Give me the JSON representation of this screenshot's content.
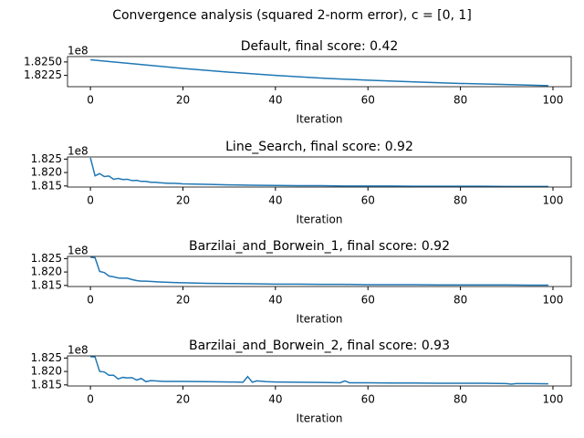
{
  "title": "Convergence analysis (squared 2-norm error), c = [0, 1]",
  "chart_data": [
    {
      "type": "line",
      "title": "Default, final score: 0.42",
      "xlabel": "Iteration",
      "offset_label": "1e8",
      "xlim": [
        -4.95,
        103.95
      ],
      "xticks": [
        0,
        20,
        40,
        60,
        80,
        100
      ],
      "ylim": [
        1.8204,
        1.826
      ],
      "yticks": [
        {
          "value": 1.8225,
          "label": "1.8225"
        },
        {
          "value": 1.825,
          "label": "1.8250"
        }
      ],
      "series": [
        {
          "color": "#1f77b4",
          "x": [
            0,
            10,
            20,
            30,
            40,
            50,
            60,
            70,
            80,
            90,
            99
          ],
          "values": [
            1.8254,
            1.8246,
            1.8238,
            1.8231,
            1.8225,
            1.822,
            1.8216,
            1.8213,
            1.821,
            1.8208,
            1.8206
          ]
        }
      ]
    },
    {
      "type": "line",
      "title": "Line_Search, final score: 0.92",
      "xlabel": "Iteration",
      "offset_label": "1e8",
      "xlim": [
        -4.95,
        103.95
      ],
      "xticks": [
        0,
        20,
        40,
        60,
        80,
        100
      ],
      "ylim": [
        1.8146,
        1.8258
      ],
      "yticks": [
        1.815,
        {
          "value": 1.82,
          "label": "1.820"
        },
        1.825
      ],
      "series": [
        {
          "color": "#1f77b4",
          "x": [
            0,
            1,
            2,
            3,
            4,
            5,
            6,
            7,
            8,
            9,
            10,
            11,
            12,
            13,
            14,
            15,
            16,
            17,
            18,
            19,
            20,
            25,
            30,
            35,
            40,
            45,
            50,
            55,
            60,
            65,
            70,
            75,
            80,
            85,
            90,
            95,
            99
          ],
          "values": [
            1.8255,
            1.8188,
            1.8196,
            1.8185,
            1.8187,
            1.8175,
            1.8178,
            1.8174,
            1.8175,
            1.817,
            1.8171,
            1.8167,
            1.8167,
            1.8164,
            1.8164,
            1.8162,
            1.8161,
            1.816,
            1.816,
            1.8159,
            1.8158,
            1.8156,
            1.8154,
            1.8153,
            1.8152,
            1.8151,
            1.8151,
            1.815,
            1.815,
            1.815,
            1.8149,
            1.8149,
            1.8149,
            1.8149,
            1.8148,
            1.8148,
            1.8148
          ]
        }
      ]
    },
    {
      "type": "line",
      "title": "Barzilai_and_Borwein_1, final score: 0.92",
      "xlabel": "Iteration",
      "offset_label": "1e8",
      "xlim": [
        -4.95,
        103.95
      ],
      "xticks": [
        0,
        20,
        40,
        60,
        80,
        100
      ],
      "ylim": [
        1.8146,
        1.8258
      ],
      "yticks": [
        1.815,
        {
          "value": 1.82,
          "label": "1.820"
        },
        1.825
      ],
      "series": [
        {
          "color": "#1f77b4",
          "x": [
            0,
            1,
            2,
            3,
            4,
            5,
            6,
            7,
            8,
            9,
            10,
            11,
            12,
            15,
            18,
            20,
            25,
            30,
            35,
            40,
            45,
            50,
            55,
            60,
            65,
            70,
            75,
            80,
            85,
            90,
            95,
            99
          ],
          "values": [
            1.8255,
            1.8253,
            1.8202,
            1.8198,
            1.8185,
            1.8182,
            1.8178,
            1.8177,
            1.8177,
            1.8172,
            1.8168,
            1.8166,
            1.8166,
            1.8163,
            1.8161,
            1.816,
            1.8158,
            1.8157,
            1.8156,
            1.8155,
            1.8155,
            1.8154,
            1.8154,
            1.8153,
            1.8153,
            1.8153,
            1.8152,
            1.8152,
            1.8152,
            1.8152,
            1.8151,
            1.8151
          ]
        }
      ]
    },
    {
      "type": "line",
      "title": "Barzilai_and_Borwein_2, final score: 0.93",
      "xlabel": "Iteration",
      "offset_label": "1e8",
      "xlim": [
        -4.95,
        103.95
      ],
      "xticks": [
        0,
        20,
        40,
        60,
        80,
        100
      ],
      "ylim": [
        1.8146,
        1.8258
      ],
      "yticks": [
        1.815,
        {
          "value": 1.82,
          "label": "1.820"
        },
        1.825
      ],
      "series": [
        {
          "color": "#1f77b4",
          "x": [
            0,
            1,
            2,
            3,
            4,
            5,
            6,
            7,
            8,
            9,
            10,
            11,
            12,
            13,
            14,
            15,
            16,
            20,
            25,
            30,
            33,
            34,
            35,
            36,
            38,
            40,
            45,
            50,
            54,
            55,
            56,
            60,
            65,
            70,
            75,
            80,
            85,
            90,
            91,
            92,
            95,
            99
          ],
          "values": [
            1.8255,
            1.8254,
            1.82,
            1.8198,
            1.8186,
            1.8186,
            1.8172,
            1.8178,
            1.8176,
            1.8177,
            1.8168,
            1.8174,
            1.8162,
            1.8166,
            1.8165,
            1.8164,
            1.8163,
            1.8163,
            1.8162,
            1.8161,
            1.816,
            1.8181,
            1.816,
            1.8165,
            1.8162,
            1.8161,
            1.816,
            1.8159,
            1.8158,
            1.8165,
            1.8158,
            1.8158,
            1.8157,
            1.8157,
            1.8156,
            1.8156,
            1.8156,
            1.8155,
            1.8153,
            1.8155,
            1.8155,
            1.8154
          ]
        }
      ]
    }
  ]
}
